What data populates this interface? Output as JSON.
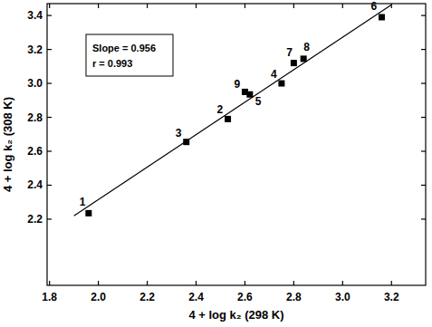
{
  "chart_data": {
    "type": "scatter",
    "x_label": "4 + log k₂ (298 K)",
    "y_label": "4 + log k₂ (308 K)",
    "annotations": [
      "Slope = 0.956",
      "r = 0.993"
    ],
    "xlim": [
      1.79,
      3.34
    ],
    "ylim": [
      1.81,
      3.47
    ],
    "xticks": [
      {
        "value": 1.8,
        "label": "1.8"
      },
      {
        "value": 2.0,
        "label": "2.0"
      },
      {
        "value": 2.2,
        "label": "2.2"
      },
      {
        "value": 2.4,
        "label": "2.4"
      },
      {
        "value": 2.6,
        "label": "2.6"
      },
      {
        "value": 2.8,
        "label": "2.8"
      },
      {
        "value": 3.0,
        "label": "3.0"
      },
      {
        "value": 3.2,
        "label": "3.2"
      }
    ],
    "yticks": [
      {
        "value": 2.2,
        "label": "2.2"
      },
      {
        "value": 2.4,
        "label": "2.4"
      },
      {
        "value": 2.6,
        "label": "2.6"
      },
      {
        "value": 2.8,
        "label": "2.8"
      },
      {
        "value": 3.0,
        "label": "3.0"
      },
      {
        "value": 3.2,
        "label": "3.2"
      },
      {
        "value": 3.4,
        "label": "3.4"
      }
    ],
    "grid": false,
    "series": [
      {
        "type": "scatter",
        "color": "#000000",
        "marker": "square",
        "labels": [
          "1",
          "2",
          "3",
          "4",
          "5",
          "6",
          "7",
          "8",
          "9"
        ],
        "x": [
          1.96,
          2.53,
          2.36,
          2.75,
          2.62,
          3.16,
          2.8,
          2.84,
          2.6
        ],
        "values": [
          2.235,
          2.79,
          2.655,
          3.0,
          2.935,
          3.39,
          3.12,
          3.145,
          2.95
        ]
      },
      {
        "type": "line",
        "color": "#000000",
        "line_style": "solid",
        "x": [
          1.9,
          3.2
        ],
        "values": [
          2.22,
          3.463
        ]
      }
    ]
  }
}
